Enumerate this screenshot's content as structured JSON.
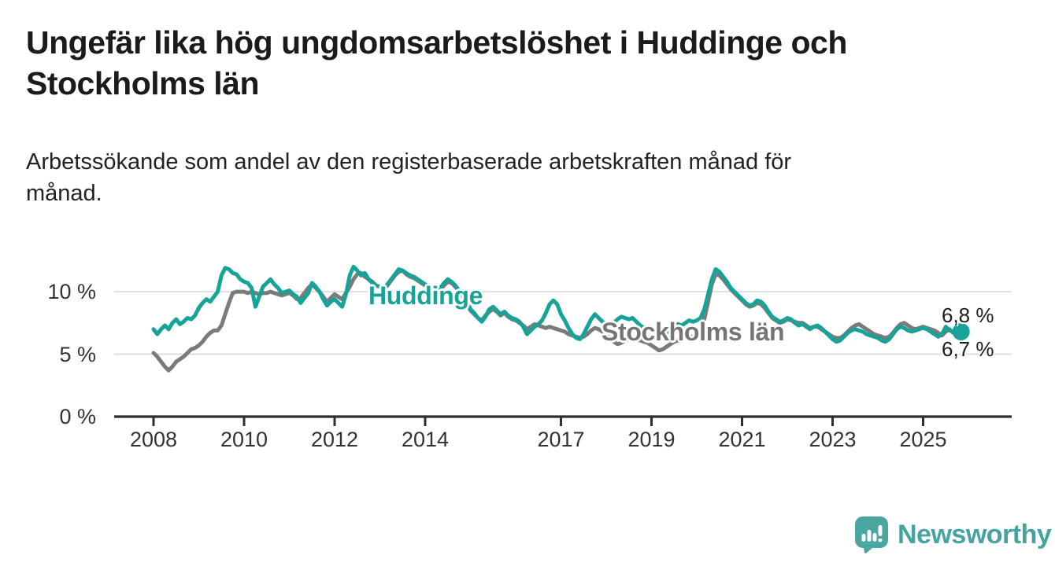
{
  "header": {
    "title": "Ungefär lika hög ungdomsarbetslöshet i Huddinge och\nStockholms län",
    "subtitle": "Arbetssökande som andel av den registerbaserade arbetskraften månad för\nmånad."
  },
  "chart_data": {
    "type": "line",
    "title": "Ungefär lika hög ungdomsarbetslöshet i Huddinge och Stockholms län",
    "subtitle": "Arbetssökande som andel av den registerbaserade arbetskraften månad för månad.",
    "unit": "%",
    "grid": "horizontal",
    "legend_position": "inline-labels-on-lines",
    "xlim": [
      2007.1,
      2026.9
    ],
    "ylim": [
      0,
      12.6
    ],
    "x_ticks": [
      "2008",
      "2010",
      "2012",
      "2014",
      "2017",
      "2019",
      "2021",
      "2023",
      "2025"
    ],
    "x_tick_years": [
      2008,
      2010,
      2012,
      2014,
      2017,
      2019,
      2021,
      2023,
      2025
    ],
    "y_ticks": [
      {
        "value": 0,
        "label": "0 %"
      },
      {
        "value": 5,
        "label": "5 %"
      },
      {
        "value": 10,
        "label": "10 %"
      }
    ],
    "x_frequency": "monthly",
    "x_start_year": 2008,
    "series": [
      {
        "name": "Huddinge",
        "color": "#17a398",
        "end_label": "6,8 %",
        "end_value": 6.8,
        "end_marker": true,
        "start": 2008,
        "values": [
          7.0,
          6.6,
          7.0,
          7.3,
          7.0,
          7.5,
          7.8,
          7.4,
          7.6,
          7.9,
          7.8,
          8.1,
          8.7,
          9.1,
          9.4,
          9.2,
          9.6,
          10.0,
          11.3,
          11.9,
          11.8,
          11.5,
          11.4,
          11.0,
          10.8,
          10.7,
          10.3,
          8.8,
          9.6,
          10.4,
          10.7,
          11.0,
          10.6,
          10.3,
          9.9,
          10.0,
          10.1,
          9.8,
          9.6,
          9.1,
          9.5,
          9.9,
          10.7,
          10.4,
          10.0,
          9.4,
          8.9,
          9.2,
          9.4,
          9.1,
          8.8,
          9.8,
          11.3,
          12.0,
          11.7,
          11.3,
          11.5,
          11.0,
          10.7,
          10.5,
          10.4,
          10.2,
          10.6,
          11.0,
          11.4,
          11.8,
          11.7,
          11.5,
          11.3,
          11.2,
          11.0,
          10.8,
          10.6,
          10.4,
          10.1,
          9.9,
          10.3,
          10.7,
          11.0,
          10.8,
          10.5,
          10.1,
          9.7,
          9.2,
          8.6,
          8.3,
          7.9,
          7.6,
          8.0,
          8.6,
          8.8,
          8.5,
          8.2,
          8.4,
          8.1,
          7.9,
          7.8,
          7.6,
          7.2,
          6.6,
          6.9,
          7.2,
          7.4,
          7.7,
          8.3,
          9.0,
          9.3,
          9.0,
          8.2,
          7.7,
          7.1,
          6.6,
          6.3,
          6.2,
          6.6,
          7.2,
          7.8,
          8.2,
          7.9,
          7.6,
          7.4,
          7.2,
          7.5,
          7.8,
          8.0,
          7.9,
          7.8,
          7.9,
          7.6,
          7.3,
          7.1,
          7.0,
          6.9,
          6.7,
          6.6,
          6.5,
          6.7,
          7.0,
          7.2,
          7.4,
          7.3,
          7.5,
          7.7,
          7.6,
          7.7,
          7.9,
          8.6,
          9.8,
          11.0,
          11.8,
          11.6,
          11.2,
          10.8,
          10.3,
          10.0,
          9.7,
          9.4,
          9.1,
          8.9,
          9.0,
          9.3,
          9.2,
          8.9,
          8.4,
          8.0,
          7.8,
          7.6,
          7.7,
          7.9,
          7.8,
          7.5,
          7.3,
          7.4,
          7.2,
          7.0,
          7.2,
          7.3,
          7.1,
          6.8,
          6.5,
          6.2,
          6.0,
          6.1,
          6.4,
          6.7,
          6.9,
          7.0,
          6.9,
          6.8,
          6.6,
          6.5,
          6.4,
          6.3,
          6.1,
          6.0,
          6.2,
          6.6,
          7.0,
          7.2,
          7.1,
          6.9,
          6.8,
          6.9,
          7.0,
          7.1,
          7.0,
          6.8,
          6.6,
          6.4,
          6.6,
          7.2,
          6.9,
          6.8,
          6.8
        ]
      },
      {
        "name": "Stockholms län",
        "color": "#7b7b7b",
        "end_label": "6,7 %",
        "end_value": 6.7,
        "end_marker": false,
        "start": 2008,
        "values": [
          5.1,
          4.8,
          4.4,
          4.0,
          3.7,
          4.0,
          4.4,
          4.6,
          4.8,
          5.1,
          5.4,
          5.5,
          5.7,
          6.0,
          6.4,
          6.7,
          6.9,
          6.9,
          7.3,
          8.2,
          9.1,
          9.9,
          10.0,
          10.0,
          10.0,
          9.9,
          10.0,
          9.9,
          9.8,
          9.9,
          9.9,
          10.0,
          9.9,
          9.8,
          9.7,
          9.8,
          9.9,
          9.7,
          9.4,
          9.5,
          9.9,
          10.3,
          10.6,
          10.3,
          10.0,
          9.6,
          9.2,
          9.5,
          9.8,
          9.6,
          9.4,
          9.9,
          10.4,
          11.0,
          11.4,
          11.5,
          11.2,
          11.0,
          10.8,
          10.5,
          10.4,
          10.2,
          10.5,
          10.9,
          11.3,
          11.6,
          11.7,
          11.4,
          11.2,
          11.1,
          10.9,
          10.7,
          10.5,
          10.3,
          10.1,
          9.9,
          10.2,
          10.5,
          10.8,
          10.7,
          10.4,
          10.0,
          9.6,
          9.1,
          8.5,
          8.2,
          7.9,
          7.7,
          8.1,
          8.4,
          8.6,
          8.4,
          8.1,
          8.3,
          8.0,
          7.8,
          7.7,
          7.5,
          7.3,
          7.0,
          7.2,
          7.4,
          7.3,
          7.2,
          7.1,
          7.2,
          7.1,
          7.0,
          6.9,
          6.8,
          6.6,
          6.5,
          6.4,
          6.3,
          6.4,
          6.6,
          6.9,
          7.1,
          7.0,
          6.8,
          6.6,
          6.3,
          6.0,
          5.8,
          5.9,
          6.1,
          6.2,
          6.3,
          6.2,
          6.1,
          6.0,
          5.9,
          5.7,
          5.5,
          5.3,
          5.4,
          5.6,
          5.8,
          6.0,
          6.1,
          6.2,
          6.3,
          6.4,
          6.4,
          6.5,
          6.8,
          7.8,
          9.2,
          10.6,
          11.4,
          11.3,
          11.0,
          10.6,
          10.2,
          9.9,
          9.6,
          9.3,
          9.0,
          8.8,
          8.9,
          9.1,
          9.0,
          8.7,
          8.3,
          7.9,
          7.7,
          7.5,
          7.6,
          7.8,
          7.7,
          7.6,
          7.5,
          7.5,
          7.3,
          7.1,
          7.2,
          7.2,
          7.0,
          6.8,
          6.6,
          6.4,
          6.3,
          6.3,
          6.5,
          6.8,
          7.1,
          7.3,
          7.4,
          7.2,
          7.0,
          6.8,
          6.6,
          6.5,
          6.4,
          6.3,
          6.4,
          6.7,
          7.1,
          7.4,
          7.5,
          7.3,
          7.1,
          7.0,
          7.1,
          7.2,
          7.1,
          7.0,
          6.9,
          6.7,
          6.5,
          6.8,
          7.0,
          6.7,
          6.7
        ]
      }
    ]
  },
  "footer": {
    "brand": "Newsworthy",
    "logo_icon": "newsworthy-speech-bubble-bar-chart-icon",
    "brand_color": "#45a3a0"
  },
  "style_colors": {
    "series_a": "#17a398",
    "series_b": "#7b7b7b",
    "gridline": "#d9d9d9",
    "axis": "#2e2e2e",
    "text": "#333333",
    "title": "#1b1b1b"
  }
}
